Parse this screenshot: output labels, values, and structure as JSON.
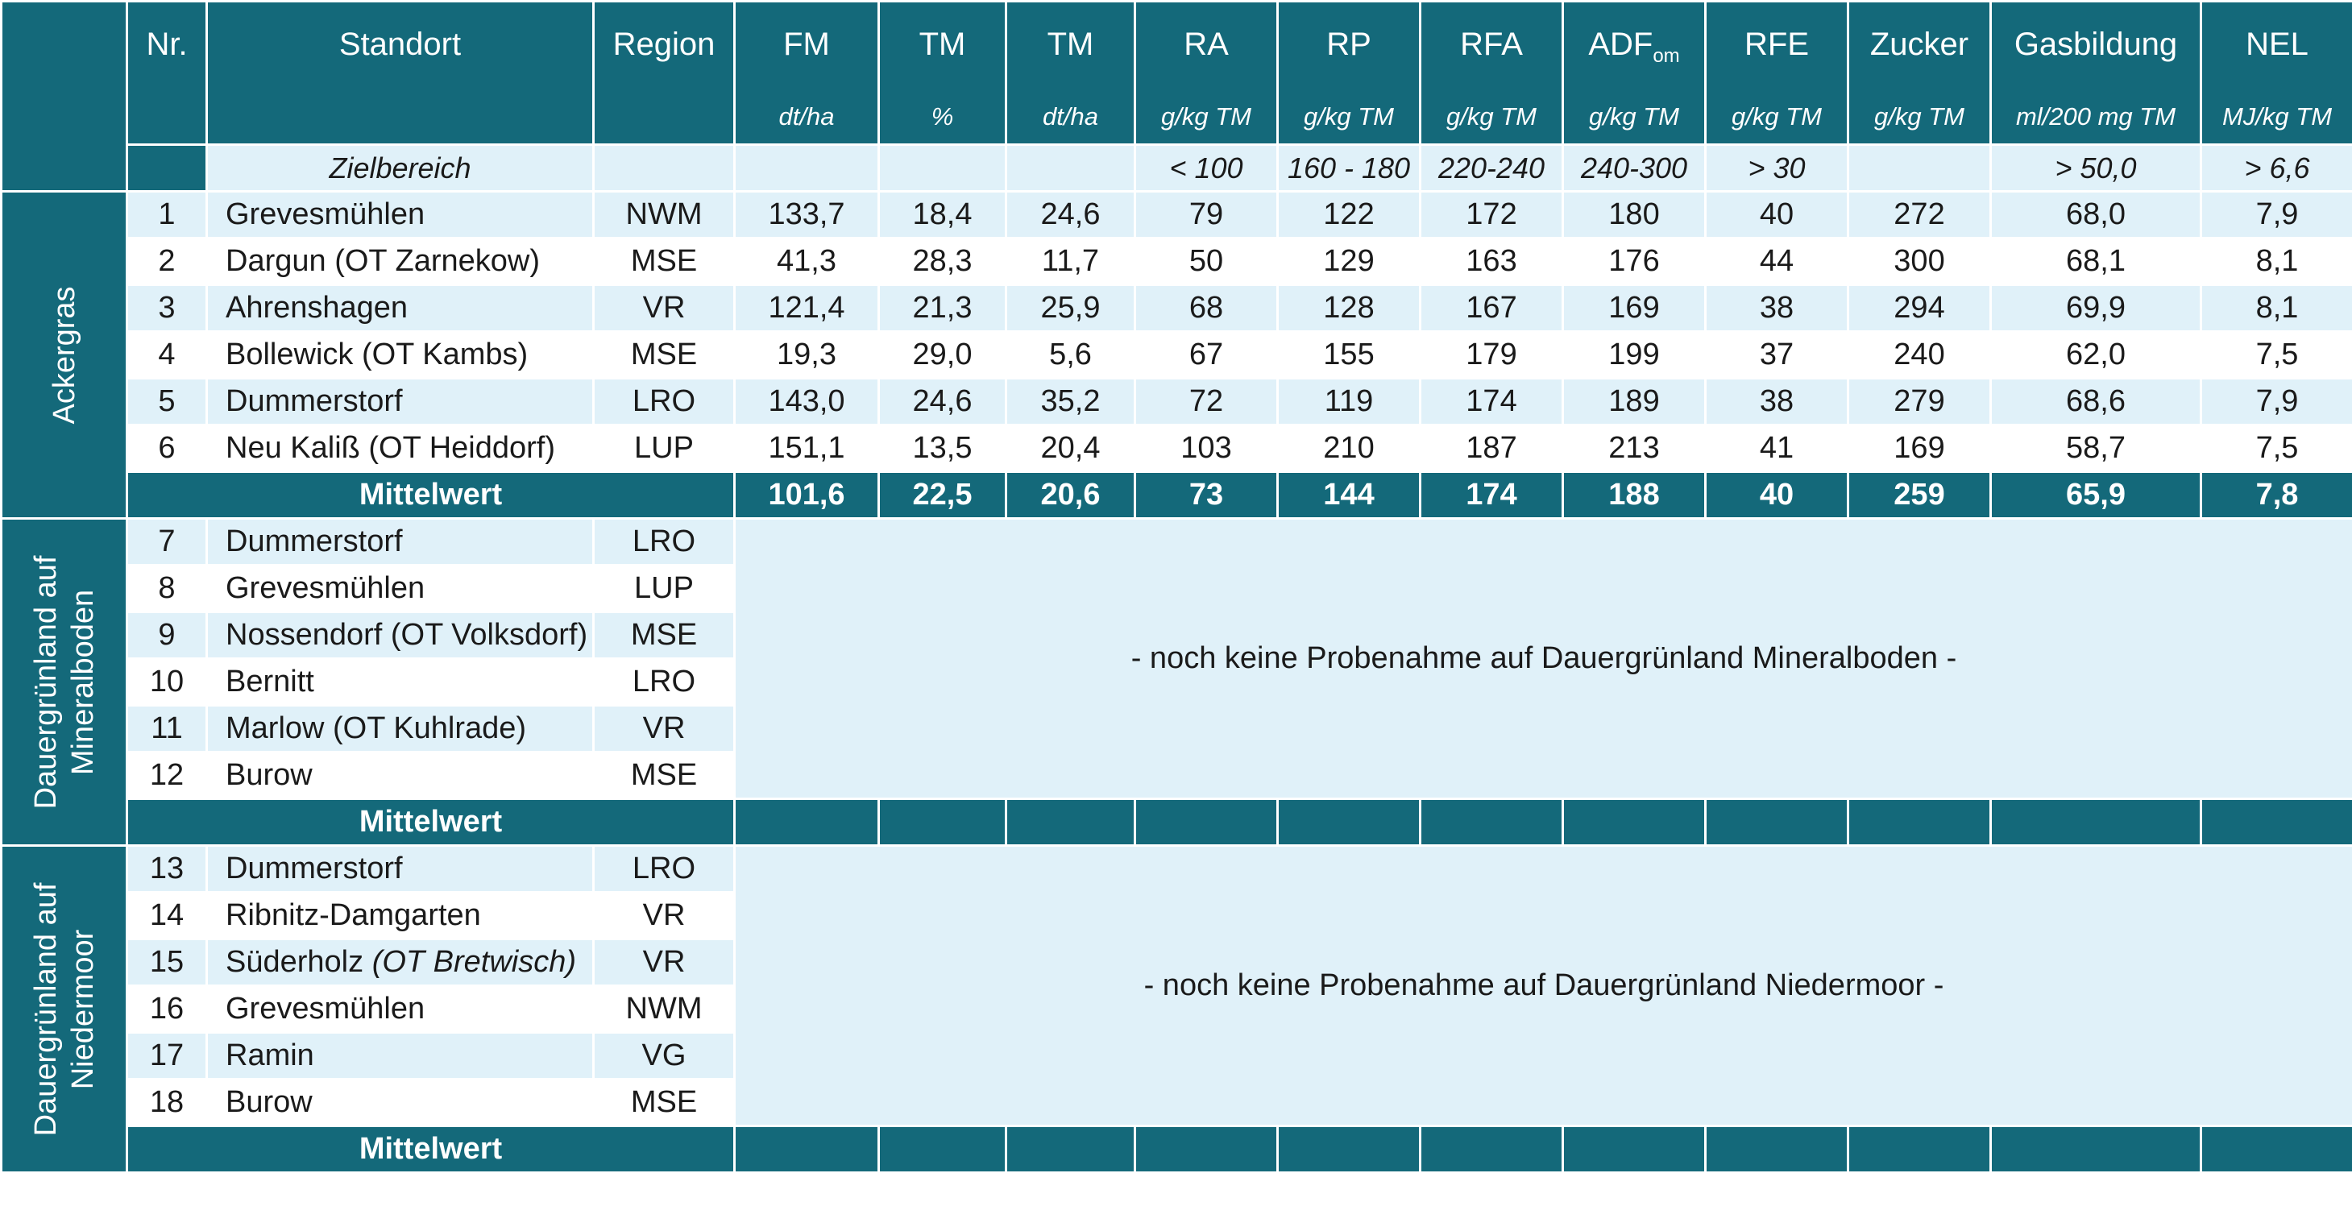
{
  "header": {
    "columns": [
      {
        "label": "Nr."
      },
      {
        "label": "Standort"
      },
      {
        "label": "Region"
      },
      {
        "label": "FM",
        "unit": "dt/ha"
      },
      {
        "label": "TM",
        "unit": "%"
      },
      {
        "label": "TM",
        "unit": "dt/ha"
      },
      {
        "label": "RA",
        "unit": "g/kg TM"
      },
      {
        "label": "RP",
        "unit": "g/kg TM"
      },
      {
        "label": "RFA",
        "unit": "g/kg TM"
      },
      {
        "label": "ADF",
        "sub": "om",
        "unit": "g/kg TM"
      },
      {
        "label": "RFE",
        "unit": "g/kg TM"
      },
      {
        "label": "Zucker",
        "unit": "g/kg TM"
      },
      {
        "label": "Gasbildung",
        "unit": "ml/200 mg TM"
      },
      {
        "label": "NEL",
        "unit": "MJ/kg TM"
      }
    ]
  },
  "zielbereich": {
    "label": "Zielbereich",
    "values": [
      null,
      null,
      null,
      "< 100",
      "160 - 180",
      "220-240",
      "240-300",
      "> 30",
      null,
      "> 50,0",
      "> 6,6"
    ]
  },
  "groups": [
    {
      "label": "Ackergras",
      "rows": [
        {
          "nr": 1,
          "standort": "Grevesmühlen",
          "region": "NWM",
          "values": [
            "133,7",
            "18,4",
            "24,6",
            "79",
            "122",
            "172",
            "180",
            "40",
            "272",
            "68,0",
            "7,9"
          ]
        },
        {
          "nr": 2,
          "standort": "Dargun (OT Zarnekow)",
          "region": "MSE",
          "values": [
            "41,3",
            "28,3",
            "11,7",
            "50",
            "129",
            "163",
            "176",
            "44",
            "300",
            "68,1",
            "8,1"
          ]
        },
        {
          "nr": 3,
          "standort": "Ahrenshagen",
          "region": "VR",
          "values": [
            "121,4",
            "21,3",
            "25,9",
            "68",
            "128",
            "167",
            "169",
            "38",
            "294",
            "69,9",
            "8,1"
          ]
        },
        {
          "nr": 4,
          "standort": "Bollewick (OT Kambs)",
          "region": "MSE",
          "values": [
            "19,3",
            "29,0",
            "5,6",
            "67",
            "155",
            "179",
            "199",
            "37",
            "240",
            "62,0",
            "7,5"
          ]
        },
        {
          "nr": 5,
          "standort": "Dummerstorf",
          "region": "LRO",
          "values": [
            "143,0",
            "24,6",
            "35,2",
            "72",
            "119",
            "174",
            "189",
            "38",
            "279",
            "68,6",
            "7,9"
          ]
        },
        {
          "nr": 6,
          "standort": "Neu Kaliß (OT Heiddorf)",
          "region": "LUP",
          "values": [
            "151,1",
            "13,5",
            "20,4",
            "103",
            "210",
            "187",
            "213",
            "41",
            "169",
            "58,7",
            "7,5"
          ]
        }
      ],
      "mean": {
        "label": "Mittelwert",
        "values": [
          "101,6",
          "22,5",
          "20,6",
          "73",
          "144",
          "174",
          "188",
          "40",
          "259",
          "65,9",
          "7,8"
        ]
      }
    },
    {
      "label": "Dauergrünland auf Mineralboden",
      "rows": [
        {
          "nr": 7,
          "standort": "Dummerstorf",
          "region": "LRO"
        },
        {
          "nr": 8,
          "standort": "Grevesmühlen",
          "region": "LUP"
        },
        {
          "nr": 9,
          "standort": "Nossendorf (OT Volksdorf)",
          "region": "MSE"
        },
        {
          "nr": 10,
          "standort": "Bernitt",
          "region": "LRO"
        },
        {
          "nr": 11,
          "standort": "Marlow (OT Kuhlrade)",
          "region": "VR"
        },
        {
          "nr": 12,
          "standort": "Burow",
          "region": "MSE"
        }
      ],
      "note": "- noch keine Probenahme auf Dauergrünland Mineralboden -",
      "mean": {
        "label": "Mittelwert"
      }
    },
    {
      "label": "Dauergrünland auf Niedermoor",
      "rows": [
        {
          "nr": 13,
          "standort": "Dummerstorf",
          "region": "LRO"
        },
        {
          "nr": 14,
          "standort": "Ribnitz-Damgarten",
          "region": "VR"
        },
        {
          "nr": 15,
          "standort": "Süderholz",
          "standort_note": "(OT Bretwisch)",
          "region": "VR"
        },
        {
          "nr": 16,
          "standort": "Grevesmühlen",
          "region": "NWM"
        },
        {
          "nr": 17,
          "standort": "Ramin",
          "region": "VG"
        },
        {
          "nr": 18,
          "standort": "Burow",
          "region": "MSE"
        }
      ],
      "note": "- noch keine Probenahme auf Dauergrünland Niedermoor -",
      "mean": {
        "label": "Mittelwert"
      }
    }
  ]
}
